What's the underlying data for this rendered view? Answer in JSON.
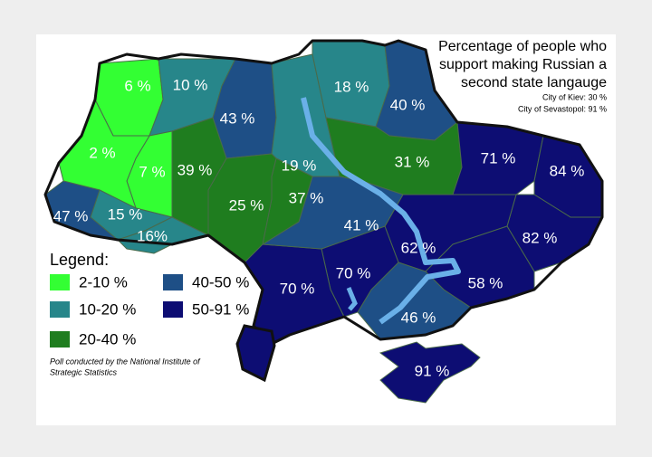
{
  "title": [
    "Percentage of people who",
    "support making Russian a",
    "second state langauge"
  ],
  "notes": [
    "City of Kiev: 30 %",
    "City of Sevastopol: 91 %"
  ],
  "regions": [
    {
      "label": "6 %",
      "color": "#33ff33"
    },
    {
      "label": "10 %",
      "color": "#27868a"
    },
    {
      "label": "43 %",
      "color": "#1e4f86"
    },
    {
      "label": "19 %",
      "color": "#27868a"
    },
    {
      "label": "18 %",
      "color": "#27868a"
    },
    {
      "label": "40 %",
      "color": "#1e4f86"
    },
    {
      "label": "31 %",
      "color": "#1f7d1f"
    },
    {
      "label": "71 %",
      "color": "#0d0d73"
    },
    {
      "label": "84 %",
      "color": "#0d0d73"
    },
    {
      "label": "82 %",
      "color": "#0d0d73"
    },
    {
      "label": "62 %",
      "color": "#0d0d73"
    },
    {
      "label": "58 %",
      "color": "#0d0d73"
    },
    {
      "label": "46 %",
      "color": "#1e4f86"
    },
    {
      "label": "70 %",
      "color": "#0d0d73"
    },
    {
      "label": "70 %",
      "color": "#0d0d73"
    },
    {
      "label": "41 %",
      "color": "#1e4f86"
    },
    {
      "label": "37 %",
      "color": "#1f7d1f"
    },
    {
      "label": "25 %",
      "color": "#1f7d1f"
    },
    {
      "label": "39 %",
      "color": "#1f7d1f"
    },
    {
      "label": "7 %",
      "color": "#33ff33"
    },
    {
      "label": "2 %",
      "color": "#33ff33"
    },
    {
      "label": "15 %",
      "color": "#27868a"
    },
    {
      "label": "16%",
      "color": "#27868a"
    },
    {
      "label": "47 %",
      "color": "#1e4f86"
    },
    {
      "label": "91 %",
      "color": "#0d0d73"
    }
  ],
  "legend": {
    "title": "Legend:",
    "items": [
      {
        "label": "2-10 %",
        "color": "#33ff33"
      },
      {
        "label": "10-20 %",
        "color": "#27868a"
      },
      {
        "label": "20-40 %",
        "color": "#1f7d1f"
      },
      {
        "label": "40-50 %",
        "color": "#1e4f86"
      },
      {
        "label": "50-91 %",
        "color": "#0d0d73"
      }
    ]
  },
  "credit": [
    "Poll conducted by the National Institute of",
    "Strategic Statistics"
  ]
}
